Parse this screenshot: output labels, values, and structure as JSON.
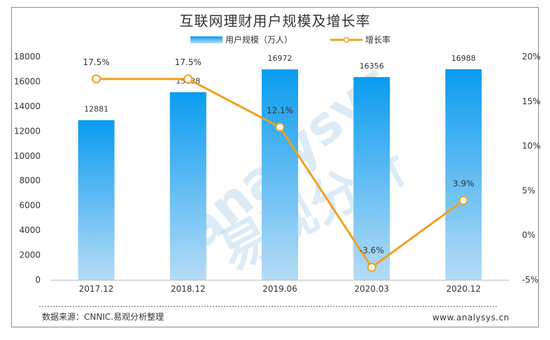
{
  "chart_data": {
    "type": "bar",
    "title": "互联网理财用户规模及增长率",
    "categories": [
      "2017.12",
      "2018.12",
      "2019.06",
      "2020.03",
      "2020.12"
    ],
    "series": [
      {
        "name": "用户规模（万人）",
        "type": "bar",
        "axis": "left",
        "values": [
          12881,
          15138,
          16972,
          16356,
          16988
        ]
      },
      {
        "name": "增长率",
        "type": "line",
        "axis": "right",
        "values": [
          17.5,
          17.5,
          12.1,
          -3.6,
          3.9
        ],
        "labels": [
          "17.5%",
          "17.5%",
          "12.1%",
          "-3.6%",
          "3.9%"
        ]
      }
    ],
    "y_left": {
      "min": 0,
      "max": 18000,
      "ticks": [
        "0",
        "2000",
        "4000",
        "6000",
        "8000",
        "10000",
        "12000",
        "14000",
        "16000",
        "18000"
      ]
    },
    "y_right": {
      "min": -5,
      "max": 20,
      "ticks": [
        "-5%",
        "0%",
        "5%",
        "10%",
        "15%",
        "20%"
      ]
    },
    "legend_position": "top-center",
    "grid": false,
    "colors": {
      "bar_top": "#0a9cf0",
      "bar_bottom": "#b6dcf6",
      "line": "#f0a01e",
      "marker_fill": "#ffffff"
    }
  },
  "footer": {
    "source": "数据来源：CNNIC.易观分析整理",
    "site": "www.analysys.cn"
  },
  "watermark": {
    "latin": "analysys",
    "cjk": "易观分析"
  }
}
